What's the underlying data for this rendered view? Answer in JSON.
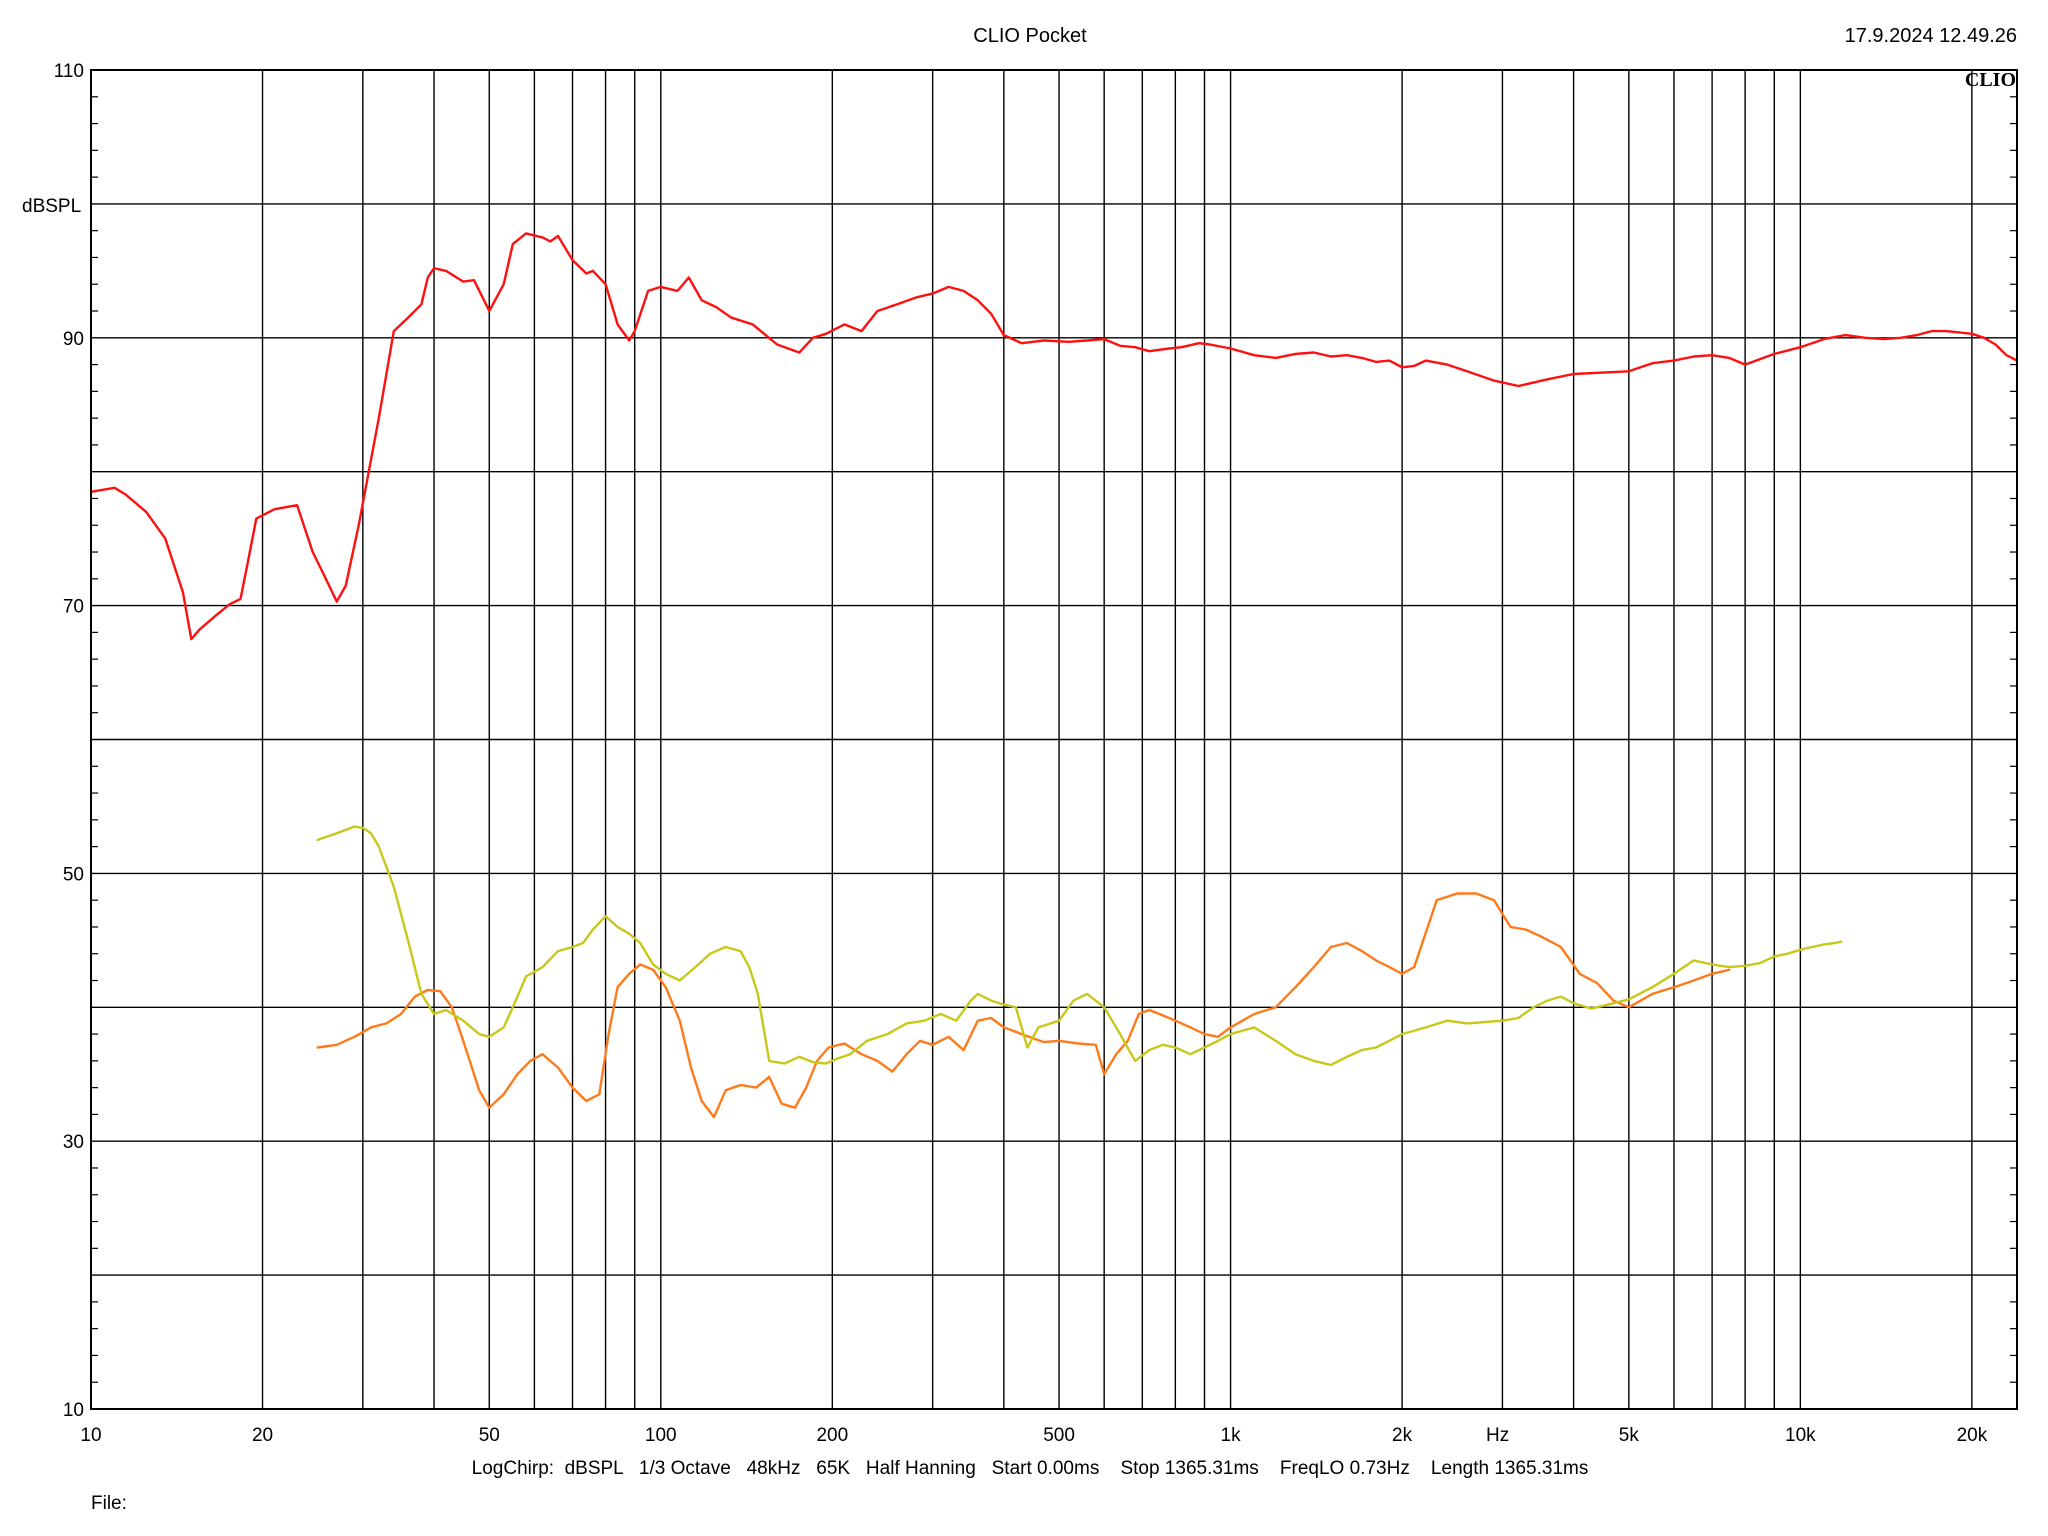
{
  "window": {
    "title": "CLIO Pocket",
    "timestamp": "17.9.2024 12.49.26",
    "logo": "CLIO"
  },
  "info": {
    "line": "LogChirp:  dBSPL   1/3 Octave   48kHz   65K   Half Hanning   Start 0.00ms    Stop 1365.31ms    FreqLO 0.73Hz    Length 1365.31ms",
    "file_label": "File:"
  },
  "colors": {
    "background": "#ffffff",
    "grid": "#000000",
    "red": "#ff1010",
    "orange": "#ff7a1a",
    "yellow": "#c8c81a"
  },
  "chart_data": {
    "type": "line",
    "title": "CLIO Pocket",
    "xlabel": "Hz",
    "ylabel": "dBSPL",
    "xscale": "log",
    "xlim": [
      10,
      24000
    ],
    "ylim": [
      10,
      110
    ],
    "grid": true,
    "x_tick_labels": [
      {
        "value": 10,
        "label": "10"
      },
      {
        "value": 20,
        "label": "20"
      },
      {
        "value": 50,
        "label": "50"
      },
      {
        "value": 100,
        "label": "100"
      },
      {
        "value": 200,
        "label": "200"
      },
      {
        "value": 500,
        "label": "500"
      },
      {
        "value": 1000,
        "label": "1k"
      },
      {
        "value": 2000,
        "label": "2k"
      },
      {
        "value": 5000,
        "label": "5k"
      },
      {
        "value": 10000,
        "label": "10k"
      },
      {
        "value": 20000,
        "label": "20k"
      }
    ],
    "y_tick_labels": [
      {
        "value": 110,
        "label": "110"
      },
      {
        "value": 90,
        "label": "90"
      },
      {
        "value": 70,
        "label": "70"
      },
      {
        "value": 50,
        "label": "50"
      },
      {
        "value": 30,
        "label": "30"
      },
      {
        "value": 10,
        "label": "10"
      }
    ],
    "series": [
      {
        "color": "#ff1010",
        "x": [
          10,
          11,
          11.5,
          12.5,
          13.5,
          14.5,
          15,
          15.5,
          16.5,
          17.5,
          18.3,
          18.8,
          19.5,
          21,
          23,
          24.5,
          25.5,
          27,
          28,
          29.5,
          32,
          34,
          36,
          38,
          39,
          40,
          42,
          45,
          47,
          50,
          53,
          55,
          58,
          62,
          64,
          66,
          70,
          74,
          76,
          80,
          84,
          88,
          90,
          95,
          100,
          107,
          112,
          118,
          125,
          133,
          145,
          160,
          175,
          185,
          195,
          210,
          225,
          240,
          260,
          280,
          300,
          320,
          340,
          360,
          380,
          400,
          430,
          470,
          520,
          560,
          600,
          640,
          680,
          720,
          780,
          820,
          880,
          920,
          1000,
          1100,
          1200,
          1300,
          1400,
          1500,
          1600,
          1700,
          1800,
          1900,
          2000,
          2100,
          2200,
          2400,
          2600,
          2900,
          3200,
          3600,
          4000,
          4500,
          5000,
          5500,
          6000,
          6500,
          7000,
          7500,
          8000,
          9000,
          10000,
          11000,
          12000,
          13000,
          14000,
          15000,
          16000,
          17000,
          18000,
          19000,
          20000,
          21000,
          22000,
          23000,
          24000
        ],
        "y": [
          78.5,
          78.8,
          78.3,
          77.0,
          75.0,
          71.0,
          67.5,
          68.2,
          69.2,
          70.1,
          70.5,
          73.0,
          76.5,
          77.2,
          77.5,
          74.0,
          72.5,
          70.3,
          71.5,
          76.0,
          84.0,
          90.5,
          91.5,
          92.5,
          94.5,
          95.2,
          95.0,
          94.2,
          94.3,
          92.0,
          94.0,
          97.0,
          97.8,
          97.5,
          97.2,
          97.6,
          95.8,
          94.8,
          95.0,
          94.0,
          91.0,
          89.8,
          90.5,
          93.5,
          93.8,
          93.5,
          94.5,
          92.8,
          92.3,
          91.5,
          91.0,
          89.5,
          88.9,
          90.0,
          90.3,
          91.0,
          90.5,
          92.0,
          92.5,
          93.0,
          93.3,
          93.8,
          93.5,
          92.8,
          91.8,
          90.2,
          89.6,
          89.8,
          89.7,
          89.8,
          89.9,
          89.4,
          89.3,
          89.0,
          89.2,
          89.3,
          89.6,
          89.5,
          89.2,
          88.7,
          88.5,
          88.8,
          88.9,
          88.6,
          88.7,
          88.5,
          88.2,
          88.3,
          87.8,
          87.9,
          88.3,
          88.0,
          87.5,
          86.8,
          86.4,
          86.9,
          87.3,
          87.4,
          87.5,
          88.1,
          88.3,
          88.6,
          88.7,
          88.5,
          88.0,
          88.8,
          89.3,
          89.9,
          90.2,
          90.0,
          89.9,
          90.0,
          90.2,
          90.5,
          90.5,
          90.4,
          90.3,
          90.0,
          89.5,
          88.7,
          88.3
        ]
      },
      {
        "color": "#ff7a1a",
        "x": [
          25,
          27,
          29,
          31,
          33,
          35,
          37,
          39,
          41,
          43,
          45,
          48,
          50,
          53,
          56,
          59,
          62,
          66,
          70,
          74,
          78,
          81,
          84,
          88,
          92,
          97,
          102,
          108,
          113,
          118,
          124,
          130,
          138,
          147,
          155,
          163,
          172,
          180,
          188,
          197,
          210,
          225,
          240,
          255,
          270,
          285,
          300,
          320,
          340,
          360,
          380,
          400,
          430,
          470,
          500,
          540,
          580,
          600,
          630,
          660,
          690,
          720,
          750,
          800,
          850,
          900,
          950,
          1000,
          1100,
          1200,
          1300,
          1400,
          1500,
          1600,
          1700,
          1800,
          1900,
          2000,
          2100,
          2300,
          2500,
          2700,
          2900,
          3100,
          3300,
          3500,
          3800,
          4100,
          4400,
          4700,
          5000,
          5500,
          6000,
          6500,
          7000,
          7500
        ],
        "y": [
          37.0,
          37.2,
          37.8,
          38.5,
          38.8,
          39.5,
          40.8,
          41.3,
          41.2,
          40.0,
          37.5,
          33.8,
          32.5,
          33.5,
          35.0,
          36.0,
          36.5,
          35.5,
          34.0,
          33.0,
          33.5,
          38.0,
          41.5,
          42.5,
          43.2,
          42.8,
          41.5,
          39.0,
          35.5,
          33.0,
          31.8,
          33.8,
          34.2,
          34.0,
          34.8,
          32.8,
          32.5,
          34.0,
          36.0,
          37.0,
          37.3,
          36.5,
          36.0,
          35.2,
          36.5,
          37.5,
          37.2,
          37.8,
          36.8,
          39.0,
          39.2,
          38.5,
          38.0,
          37.4,
          37.5,
          37.3,
          37.2,
          35.0,
          36.5,
          37.5,
          39.5,
          39.8,
          39.5,
          39.0,
          38.5,
          38.0,
          37.8,
          38.5,
          39.5,
          40.0,
          41.5,
          43.0,
          44.5,
          44.8,
          44.2,
          43.5,
          43.0,
          42.5,
          43.0,
          48.0,
          48.5,
          48.5,
          48.0,
          46.0,
          45.8,
          45.3,
          44.5,
          42.5,
          41.8,
          40.5,
          40.0,
          41.0,
          41.5,
          42.0,
          42.5,
          42.8
        ]
      },
      {
        "color": "#c8c81a",
        "x": [
          25,
          27,
          29,
          30,
          31,
          32,
          34,
          36,
          38,
          40,
          42,
          45,
          48,
          50,
          53,
          55,
          58,
          62,
          66,
          70,
          73,
          76,
          80,
          84,
          88,
          92,
          97,
          102,
          108,
          115,
          122,
          130,
          138,
          143,
          148,
          155,
          165,
          175,
          185,
          195,
          205,
          215,
          230,
          250,
          270,
          290,
          310,
          330,
          350,
          360,
          380,
          400,
          420,
          440,
          460,
          500,
          530,
          560,
          600,
          640,
          680,
          720,
          760,
          800,
          850,
          900,
          950,
          1000,
          1100,
          1200,
          1300,
          1400,
          1500,
          1600,
          1700,
          1800,
          1900,
          2000,
          2200,
          2400,
          2600,
          2800,
          3000,
          3200,
          3400,
          3600,
          3800,
          4000,
          4300,
          4600,
          5000,
          5500,
          6000,
          6500,
          7000,
          7500,
          8000,
          8500,
          9000,
          9500,
          10000,
          10500,
          11000,
          11500,
          11800
        ],
        "y": [
          52.5,
          53.0,
          53.5,
          53.4,
          53.0,
          52.0,
          49.0,
          45.0,
          41.0,
          39.5,
          39.8,
          39.0,
          38.0,
          37.8,
          38.5,
          40.0,
          42.3,
          43.0,
          44.2,
          44.5,
          44.8,
          45.8,
          46.8,
          46.0,
          45.5,
          44.8,
          43.2,
          42.5,
          42.0,
          43.0,
          44.0,
          44.5,
          44.2,
          43.0,
          41.0,
          36.0,
          35.8,
          36.3,
          35.9,
          35.8,
          36.2,
          36.5,
          37.5,
          38.0,
          38.8,
          39.0,
          39.5,
          39.0,
          40.5,
          41.0,
          40.5,
          40.2,
          40.0,
          37.0,
          38.5,
          39.0,
          40.5,
          41.0,
          40.0,
          38.0,
          36.0,
          36.8,
          37.2,
          37.0,
          36.5,
          37.0,
          37.5,
          38.0,
          38.5,
          37.5,
          36.5,
          36.0,
          35.7,
          36.3,
          36.8,
          37.0,
          37.5,
          38.0,
          38.5,
          39.0,
          38.8,
          38.9,
          39.0,
          39.2,
          40.0,
          40.5,
          40.8,
          40.3,
          39.9,
          40.2,
          40.6,
          41.5,
          42.5,
          43.5,
          43.2,
          43.0,
          43.1,
          43.3,
          43.8,
          44.0,
          44.3,
          44.5,
          44.7,
          44.8,
          44.9
        ]
      }
    ]
  }
}
